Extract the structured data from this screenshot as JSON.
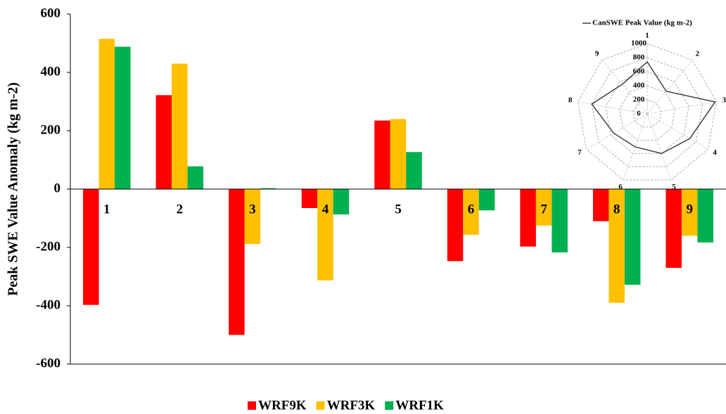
{
  "chart_data": [
    {
      "type": "bar",
      "ylabel": "Peak SWE Value Anomaly (kg m-2)",
      "categories": [
        "1",
        "2",
        "3",
        "4",
        "5",
        "6",
        "7",
        "8",
        "9"
      ],
      "series": [
        {
          "name": "WRF9K",
          "color": "#ff0000",
          "values": [
            -397,
            322,
            -500,
            -65,
            235,
            -247,
            -197,
            -110,
            -270
          ]
        },
        {
          "name": "WRF3K",
          "color": "#ffc000",
          "values": [
            515,
            430,
            -188,
            -313,
            240,
            -157,
            -125,
            -390,
            -160
          ]
        },
        {
          "name": "WRF1K",
          "color": "#00b050",
          "values": [
            488,
            78,
            3,
            -87,
            127,
            -73,
            -217,
            -328,
            -183
          ]
        }
      ],
      "ylim": [
        -600,
        600
      ],
      "yticks": [
        -600,
        -400,
        -200,
        0,
        200,
        400,
        600
      ],
      "legend_position": "bottom"
    },
    {
      "type": "radar",
      "categories": [
        "1",
        "2",
        "3",
        "4",
        "5",
        "6",
        "7",
        "8",
        "9"
      ],
      "series": [
        {
          "name": "CanSWE Peak Value (kg m-2)",
          "color": "#404040",
          "values": [
            740,
            420,
            980,
            700,
            600,
            500,
            550,
            800,
            550
          ]
        }
      ],
      "rlim": [
        0,
        1000
      ],
      "rticks": [
        0,
        200,
        400,
        600,
        800,
        1000
      ],
      "legend_position": "top"
    }
  ]
}
